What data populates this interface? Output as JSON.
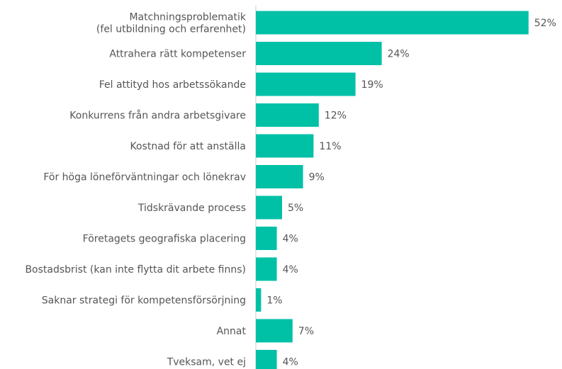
{
  "chart_data": {
    "type": "bar",
    "orientation": "horizontal",
    "categories": [
      "Matchningsproblematik\n(fel utbildning och erfarenhet)",
      "Attrahera rätt kompetenser",
      "Fel attityd hos arbetssökande",
      "Konkurrens från andra arbetsgivare",
      "Kostnad för att anställa",
      "För höga löneförväntningar och lönekrav",
      "Tidskrävande process",
      "Företagets geografiska placering",
      "Bostadsbrist (kan inte flytta dit arbete finns)",
      "Saknar strategi för kompetensförsörjning",
      "Annat",
      "Tveksam, vet ej"
    ],
    "values": [
      52,
      24,
      19,
      12,
      11,
      9,
      5,
      4,
      4,
      1,
      7,
      4
    ],
    "value_labels": [
      "52%",
      "24%",
      "19%",
      "12%",
      "11%",
      "9%",
      "5%",
      "4%",
      "4%",
      "1%",
      "7%",
      "4%"
    ],
    "color": "#00c0a6"
  }
}
